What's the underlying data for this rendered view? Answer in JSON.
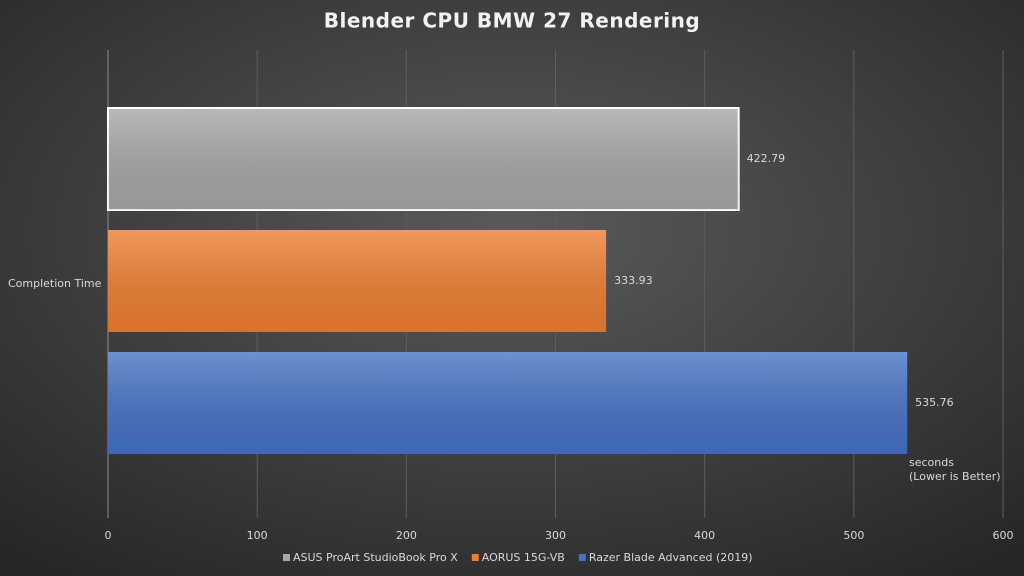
{
  "chart_data": {
    "type": "hbar",
    "title": "Blender CPU BMW 27 Rendering",
    "categories": [
      "Completion Time"
    ],
    "series": [
      {
        "name": "ASUS ProArt StudioBook Pro X",
        "color": "#a6a6a6",
        "values": [
          422.79
        ]
      },
      {
        "name": "AORUS 15G-VB",
        "color": "#ed7d31",
        "values": [
          333.93
        ]
      },
      {
        "name": "Razer Blade Advanced (2019)",
        "color": "#4472c4",
        "values": [
          535.76
        ]
      }
    ],
    "annotation": [
      "seconds",
      "(Lower is Better)"
    ],
    "xlim": [
      0,
      600
    ],
    "xticks": [
      0,
      100,
      200,
      300,
      400,
      500,
      600
    ],
    "grid": true,
    "legend": "bottom"
  }
}
